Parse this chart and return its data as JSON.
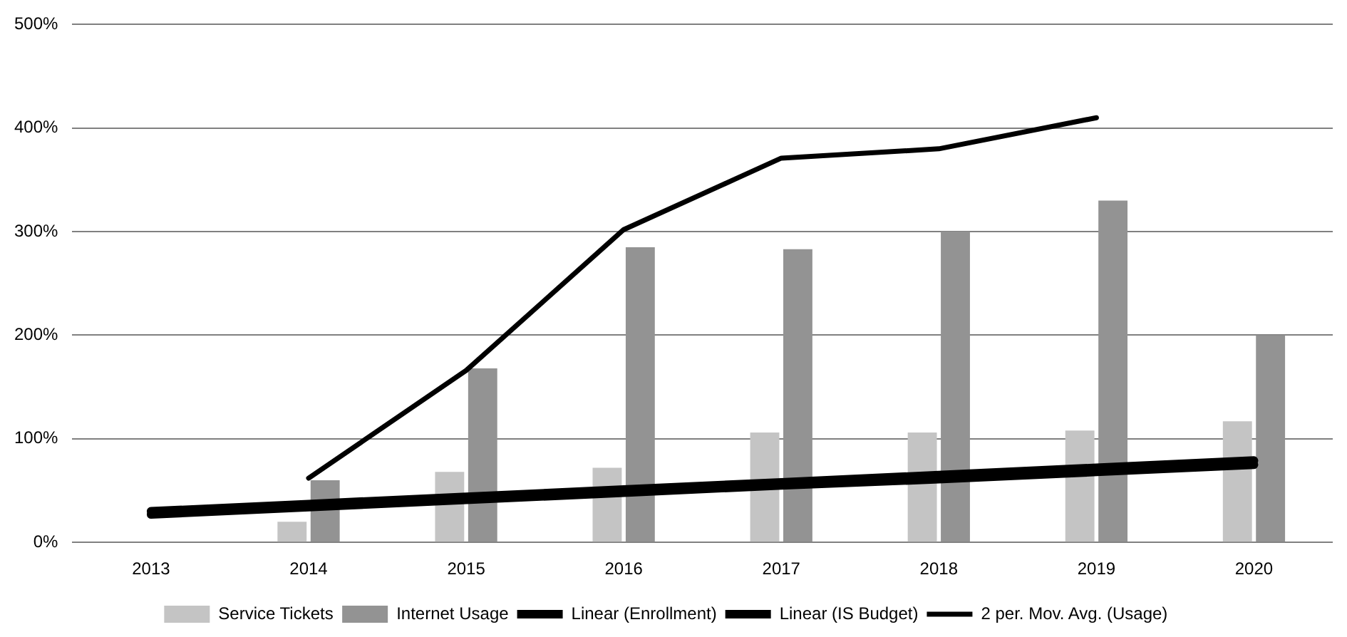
{
  "chart_data": {
    "type": "bar",
    "categories": [
      "2013",
      "2014",
      "2015",
      "2016",
      "2017",
      "2018",
      "2019",
      "2020"
    ],
    "series": [
      {
        "name": "Service Tickets",
        "color": "#c4c4c4",
        "values": [
          null,
          20,
          68,
          72,
          106,
          106,
          108,
          117
        ]
      },
      {
        "name": "Internet Usage",
        "color": "#939393",
        "values": [
          null,
          60,
          168,
          285,
          283,
          300,
          330,
          200
        ]
      },
      {
        "name": "Linear (Enrollment)",
        "type": "line",
        "color": "#000000",
        "values": [
          30,
          37,
          44,
          51,
          58,
          65,
          72,
          79
        ]
      },
      {
        "name": "Linear (IS Budget)",
        "type": "line",
        "color": "#000000",
        "values": [
          27,
          34,
          41,
          48,
          55,
          61,
          68,
          75
        ]
      },
      {
        "name": "2 per. Mov. Avg. (Usage)",
        "type": "line",
        "color": "#000000",
        "values": [
          null,
          62,
          166,
          302,
          371,
          380,
          410,
          null
        ]
      }
    ],
    "ylim": [
      0,
      500
    ],
    "yticks": [
      {
        "value": 0,
        "label": "0%"
      },
      {
        "value": 100,
        "label": "100%"
      },
      {
        "value": 200,
        "label": "200%"
      },
      {
        "value": 300,
        "label": "300%"
      },
      {
        "value": 400,
        "label": "400%"
      },
      {
        "value": 500,
        "label": "500%"
      }
    ],
    "grid": "y",
    "legend": "bottom",
    "marker": "none"
  }
}
